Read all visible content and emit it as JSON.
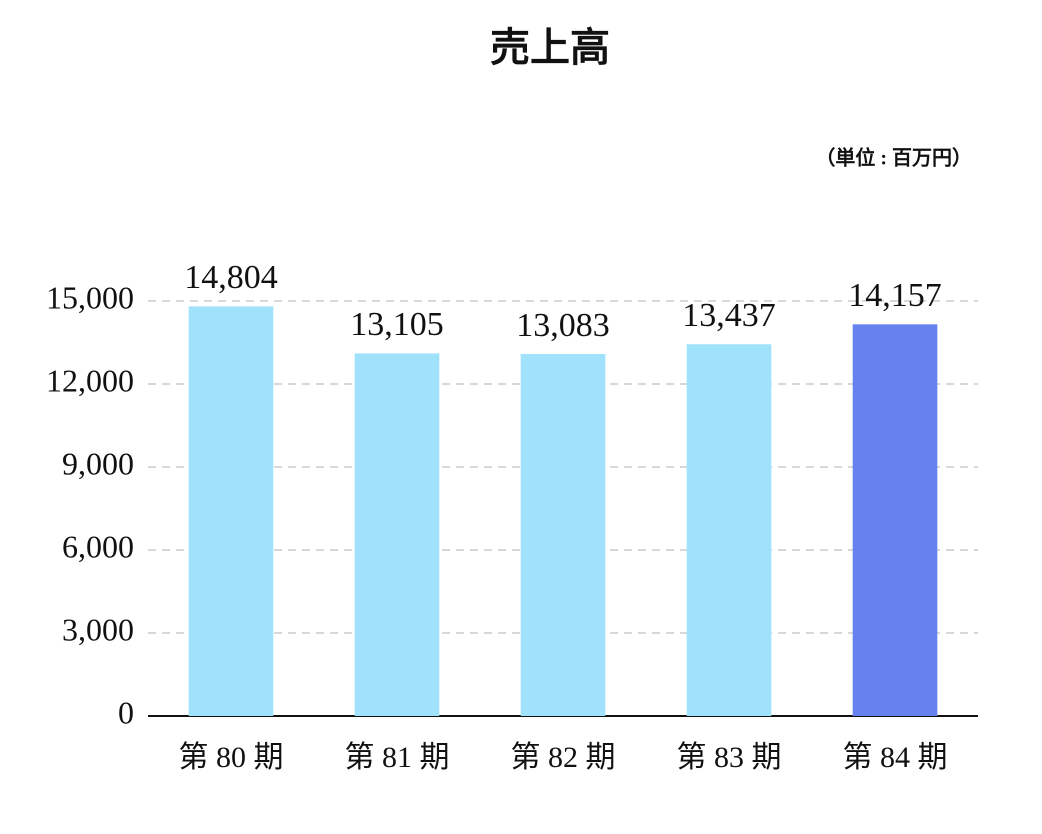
{
  "chart_data": {
    "type": "bar",
    "title": "売上高",
    "subtitle": "（単位 : 百万円）",
    "categories": [
      "第 80 期",
      "第 81 期",
      "第 82 期",
      "第 83 期",
      "第 84 期"
    ],
    "values": [
      14804,
      13105,
      13083,
      13437,
      14157
    ],
    "value_labels": [
      "14,804",
      "13,105",
      "13,083",
      "13,437",
      "14,157"
    ],
    "colors": [
      "#a0e1fb",
      "#a0e1fb",
      "#a0e1fb",
      "#a0e1fb",
      "#6682ee"
    ],
    "ylim": [
      0,
      15000
    ],
    "yticks": [
      0,
      {
        "value": 3000,
        "label": "3,000"
      },
      {
        "value": 6000,
        "label": "6,000"
      },
      {
        "value": 9000,
        "label": "9,000"
      },
      {
        "value": 12000,
        "label": "12,000"
      },
      {
        "value": 15000,
        "label": "15,000"
      }
    ],
    "grid": true
  }
}
